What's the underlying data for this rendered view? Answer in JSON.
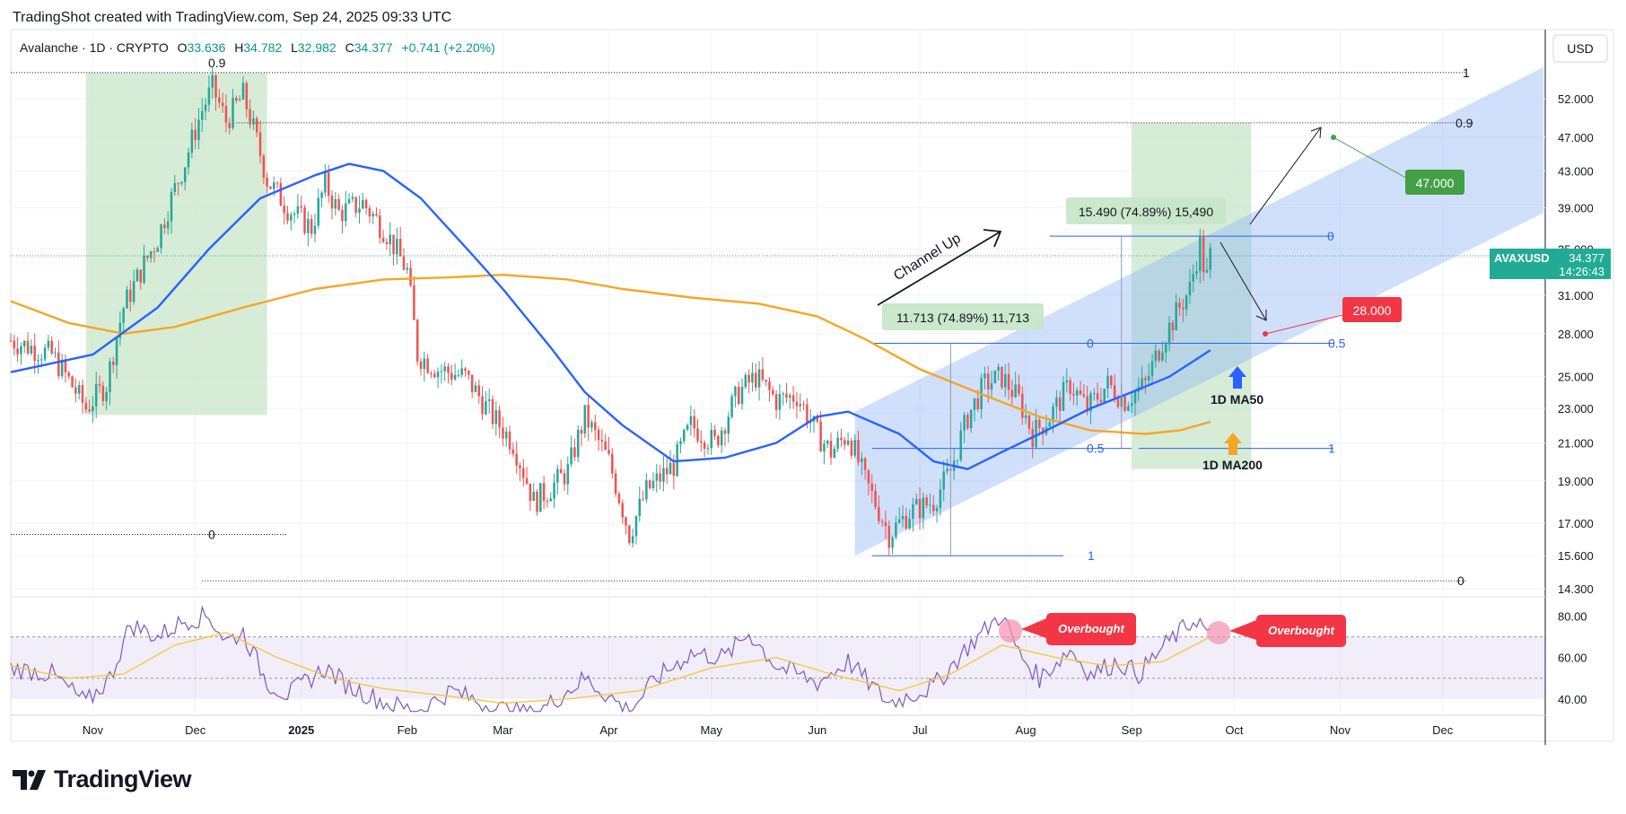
{
  "header": {
    "created_by": "TradingShot created with TradingView.com, Sep 24, 2025 09:33 UTC"
  },
  "legend": {
    "symbol": "Avalanche · 1D · CRYPTO",
    "open_label": "O",
    "open": "33.636",
    "high_label": "H",
    "high": "34.782",
    "low_label": "L",
    "low": "32.982",
    "close_label": "C",
    "close": "34.377",
    "change": "+0.741 (+2.20%)"
  },
  "currency": "USD",
  "ticker_badge": {
    "symbol": "AVAXUSD",
    "price": "34.377",
    "countdown": "14:26:43"
  },
  "brand": "TradingView",
  "colors": {
    "up": "#26a69a",
    "down": "#ef5350",
    "ma50": "#2962ff",
    "ma200": "#f5a623",
    "rsi": "#7e57c2",
    "rsi_ma": "#f5c842",
    "channel": "#90b4f5",
    "zone": "#c8e6c9",
    "target_green": "#43a047",
    "target_red": "#f23645"
  },
  "chart_data": {
    "type": "candlestick",
    "symbol": "AVAXUSD",
    "y_axis": {
      "scale": "log",
      "range": [
        14.0,
        60.0
      ],
      "ticks": [
        14.3,
        15.6,
        17.0,
        19.0,
        21.0,
        23.0,
        25.0,
        28.0,
        31.0,
        35.0,
        39.0,
        43.0,
        47.0,
        52.0
      ],
      "tick_labels": [
        "14.300",
        "15.600",
        "17.000",
        "19.000",
        "21.000",
        "23.000",
        "25.000",
        "28.000",
        "31.000",
        "35.000",
        "39.000",
        "43.000",
        "47.000",
        "52.000"
      ]
    },
    "x_axis": {
      "range": [
        "2024-10-08",
        "2025-12-31"
      ],
      "tick_labels": [
        {
          "date": "2024-11-01",
          "label": "Nov"
        },
        {
          "date": "2024-12-01",
          "label": "Dec"
        },
        {
          "date": "2025-01-01",
          "label": "2025"
        },
        {
          "date": "2025-02-01",
          "label": "Feb"
        },
        {
          "date": "2025-03-01",
          "label": "Mar"
        },
        {
          "date": "2025-04-01",
          "label": "Apr"
        },
        {
          "date": "2025-05-01",
          "label": "May"
        },
        {
          "date": "2025-06-01",
          "label": "Jun"
        },
        {
          "date": "2025-07-01",
          "label": "Jul"
        },
        {
          "date": "2025-08-01",
          "label": "Aug"
        },
        {
          "date": "2025-09-01",
          "label": "Sep"
        },
        {
          "date": "2025-10-01",
          "label": "Oct"
        },
        {
          "date": "2025-11-01",
          "label": "Nov"
        },
        {
          "date": "2025-12-01",
          "label": "Dec"
        }
      ]
    },
    "price_path": [
      [
        "2024-10-08",
        27.5
      ],
      [
        "2024-10-20",
        26.5
      ],
      [
        "2024-10-30",
        23.0
      ],
      [
        "2024-11-05",
        24.5
      ],
      [
        "2024-11-10",
        30.0
      ],
      [
        "2024-11-20",
        36.0
      ],
      [
        "2024-11-28",
        44.0
      ],
      [
        "2024-12-03",
        50.5
      ],
      [
        "2024-12-06",
        53.5
      ],
      [
        "2024-12-10",
        49.0
      ],
      [
        "2024-12-15",
        52.5
      ],
      [
        "2024-12-22",
        42.0
      ],
      [
        "2024-12-28",
        39.0
      ],
      [
        "2025-01-04",
        37.0
      ],
      [
        "2025-01-08",
        41.5
      ],
      [
        "2025-01-12",
        38.5
      ],
      [
        "2025-01-19",
        39.5
      ],
      [
        "2025-01-26",
        36.5
      ],
      [
        "2025-02-01",
        33.0
      ],
      [
        "2025-02-04",
        26.5
      ],
      [
        "2025-02-10",
        25.5
      ],
      [
        "2025-02-18",
        25.0
      ],
      [
        "2025-02-26",
        22.5
      ],
      [
        "2025-03-04",
        21.0
      ],
      [
        "2025-03-10",
        18.0
      ],
      [
        "2025-03-14",
        18.5
      ],
      [
        "2025-03-20",
        19.5
      ],
      [
        "2025-03-25",
        22.5
      ],
      [
        "2025-04-01",
        20.0
      ],
      [
        "2025-04-07",
        16.5
      ],
      [
        "2025-04-12",
        18.5
      ],
      [
        "2025-04-20",
        19.8
      ],
      [
        "2025-04-25",
        22.0
      ],
      [
        "2025-05-02",
        21.0
      ],
      [
        "2025-05-09",
        24.0
      ],
      [
        "2025-05-14",
        25.0
      ],
      [
        "2025-05-20",
        23.5
      ],
      [
        "2025-05-26",
        23.8
      ],
      [
        "2025-06-01",
        21.5
      ],
      [
        "2025-06-05",
        20.5
      ],
      [
        "2025-06-10",
        21.5
      ],
      [
        "2025-06-15",
        19.0
      ],
      [
        "2025-06-22",
        16.5
      ],
      [
        "2025-06-28",
        17.5
      ],
      [
        "2025-07-05",
        18.0
      ],
      [
        "2025-07-10",
        19.5
      ],
      [
        "2025-07-15",
        22.5
      ],
      [
        "2025-07-20",
        24.5
      ],
      [
        "2025-07-25",
        25.0
      ],
      [
        "2025-07-30",
        23.5
      ],
      [
        "2025-08-03",
        21.5
      ],
      [
        "2025-08-08",
        22.5
      ],
      [
        "2025-08-14",
        24.5
      ],
      [
        "2025-08-19",
        23.0
      ],
      [
        "2025-08-25",
        24.5
      ],
      [
        "2025-08-30",
        23.5
      ],
      [
        "2025-09-05",
        24.5
      ],
      [
        "2025-09-10",
        27.5
      ],
      [
        "2025-09-14",
        29.5
      ],
      [
        "2025-09-18",
        31.5
      ],
      [
        "2025-09-21",
        35.5
      ],
      [
        "2025-09-22",
        33.5
      ],
      [
        "2025-09-23",
        32.5
      ],
      [
        "2025-09-24",
        34.377
      ]
    ],
    "ma50": [
      [
        "2024-10-08",
        25.3
      ],
      [
        "2024-11-01",
        26.5
      ],
      [
        "2024-11-20",
        30.0
      ],
      [
        "2024-12-05",
        35.0
      ],
      [
        "2024-12-20",
        40.0
      ],
      [
        "2025-01-05",
        42.5
      ],
      [
        "2025-01-15",
        43.8
      ],
      [
        "2025-01-25",
        43.0
      ],
      [
        "2025-02-05",
        40.0
      ],
      [
        "2025-02-20",
        34.5
      ],
      [
        "2025-03-01",
        31.5
      ],
      [
        "2025-03-15",
        27.0
      ],
      [
        "2025-03-25",
        24.0
      ],
      [
        "2025-04-05",
        22.0
      ],
      [
        "2025-04-20",
        20.0
      ],
      [
        "2025-05-05",
        20.2
      ],
      [
        "2025-05-20",
        21.0
      ],
      [
        "2025-06-01",
        22.5
      ],
      [
        "2025-06-10",
        22.8
      ],
      [
        "2025-06-25",
        21.5
      ],
      [
        "2025-07-05",
        20.0
      ],
      [
        "2025-07-15",
        19.6
      ],
      [
        "2025-07-25",
        20.5
      ],
      [
        "2025-08-05",
        21.5
      ],
      [
        "2025-08-20",
        23.0
      ],
      [
        "2025-09-01",
        24.0
      ],
      [
        "2025-09-12",
        25.0
      ],
      [
        "2025-09-24",
        26.8
      ]
    ],
    "ma200": [
      [
        "2024-10-08",
        30.5
      ],
      [
        "2024-10-25",
        28.8
      ],
      [
        "2024-11-10",
        28.0
      ],
      [
        "2024-11-25",
        28.5
      ],
      [
        "2024-12-15",
        30.0
      ],
      [
        "2025-01-05",
        31.5
      ],
      [
        "2025-01-25",
        32.3
      ],
      [
        "2025-02-15",
        32.5
      ],
      [
        "2025-03-01",
        32.7
      ],
      [
        "2025-03-20",
        32.3
      ],
      [
        "2025-04-05",
        31.5
      ],
      [
        "2025-04-25",
        30.8
      ],
      [
        "2025-05-15",
        30.3
      ],
      [
        "2025-06-01",
        29.3
      ],
      [
        "2025-06-15",
        27.6
      ],
      [
        "2025-07-01",
        25.5
      ],
      [
        "2025-07-20",
        23.8
      ],
      [
        "2025-08-05",
        22.5
      ],
      [
        "2025-08-20",
        21.7
      ],
      [
        "2025-09-05",
        21.5
      ],
      [
        "2025-09-15",
        21.7
      ],
      [
        "2025-09-24",
        22.2
      ]
    ],
    "rsi": {
      "ticks": [
        40,
        60,
        80
      ],
      "tick_labels": [
        "40.00",
        "60.00",
        "80.00"
      ],
      "band": [
        40,
        70
      ],
      "path": [
        [
          "2024-10-08",
          55
        ],
        [
          "2024-10-20",
          52
        ],
        [
          "2024-10-30",
          38
        ],
        [
          "2024-11-06",
          50
        ],
        [
          "2024-11-12",
          76
        ],
        [
          "2024-11-20",
          70
        ],
        [
          "2024-11-28",
          78
        ],
        [
          "2024-12-05",
          80
        ],
        [
          "2024-12-10",
          68
        ],
        [
          "2024-12-15",
          72
        ],
        [
          "2024-12-22",
          48
        ],
        [
          "2024-12-28",
          42
        ],
        [
          "2025-01-08",
          55
        ],
        [
          "2025-01-15",
          46
        ],
        [
          "2025-01-26",
          38
        ],
        [
          "2025-02-04",
          34
        ],
        [
          "2025-02-14",
          44
        ],
        [
          "2025-02-26",
          36
        ],
        [
          "2025-03-10",
          32
        ],
        [
          "2025-03-25",
          50
        ],
        [
          "2025-04-07",
          34
        ],
        [
          "2025-04-15",
          50
        ],
        [
          "2025-04-25",
          62
        ],
        [
          "2025-05-05",
          60
        ],
        [
          "2025-05-12",
          72
        ],
        [
          "2025-05-20",
          56
        ],
        [
          "2025-06-01",
          48
        ],
        [
          "2025-06-10",
          58
        ],
        [
          "2025-06-22",
          38
        ],
        [
          "2025-07-05",
          46
        ],
        [
          "2025-07-15",
          65
        ],
        [
          "2025-07-25",
          81
        ],
        [
          "2025-07-30",
          62
        ],
        [
          "2025-08-05",
          50
        ],
        [
          "2025-08-14",
          64
        ],
        [
          "2025-08-20",
          52
        ],
        [
          "2025-08-28",
          58
        ],
        [
          "2025-09-03",
          52
        ],
        [
          "2025-09-12",
          68
        ],
        [
          "2025-09-20",
          79
        ],
        [
          "2025-09-24",
          70
        ]
      ],
      "ma_path": [
        [
          "2024-10-08",
          56
        ],
        [
          "2024-10-25",
          50
        ],
        [
          "2024-11-10",
          52
        ],
        [
          "2024-11-25",
          66
        ],
        [
          "2024-12-10",
          72
        ],
        [
          "2024-12-25",
          60
        ],
        [
          "2025-01-10",
          50
        ],
        [
          "2025-01-25",
          45
        ],
        [
          "2025-02-10",
          42
        ],
        [
          "2025-03-01",
          38
        ],
        [
          "2025-03-20",
          40
        ],
        [
          "2025-04-10",
          44
        ],
        [
          "2025-05-01",
          55
        ],
        [
          "2025-05-20",
          60
        ],
        [
          "2025-06-05",
          52
        ],
        [
          "2025-06-25",
          44
        ],
        [
          "2025-07-10",
          52
        ],
        [
          "2025-07-25",
          66
        ],
        [
          "2025-08-10",
          60
        ],
        [
          "2025-08-25",
          56
        ],
        [
          "2025-09-10",
          58
        ],
        [
          "2025-09-24",
          70
        ]
      ]
    },
    "annotations": {
      "fib_left": {
        "label_top": "0.9",
        "label_right_top": "1",
        "label_left_bottom": "0",
        "label_right_bottom": "0",
        "levels_price": {
          "top": 55.7,
          "left_zero": 16.5,
          "bottom": 14.6
        }
      },
      "fib_right": {
        "label_left": "0.9",
        "price": 48.8
      },
      "channel_label": "Channel Up",
      "measure_1": {
        "text": "11.713 (74.89%) 11,713",
        "from": 15.6,
        "to": 27.3
      },
      "measure_2": {
        "text": "15.490 (74.89%) 15,490",
        "from": 20.7,
        "to": 36.2
      },
      "fib_july": {
        "labels": [
          "0",
          "0.5",
          "1"
        ],
        "prices": [
          27.3,
          20.7,
          15.6
        ]
      },
      "fib_sept": {
        "labels": [
          "0",
          "0.5",
          "1"
        ],
        "prices": [
          36.2,
          27.3,
          20.7
        ]
      },
      "ma50_label": "1D MA50",
      "ma200_label": "1D MA200",
      "target_up": "47.000",
      "target_down": "28.000",
      "overbought": "Overbought"
    }
  }
}
